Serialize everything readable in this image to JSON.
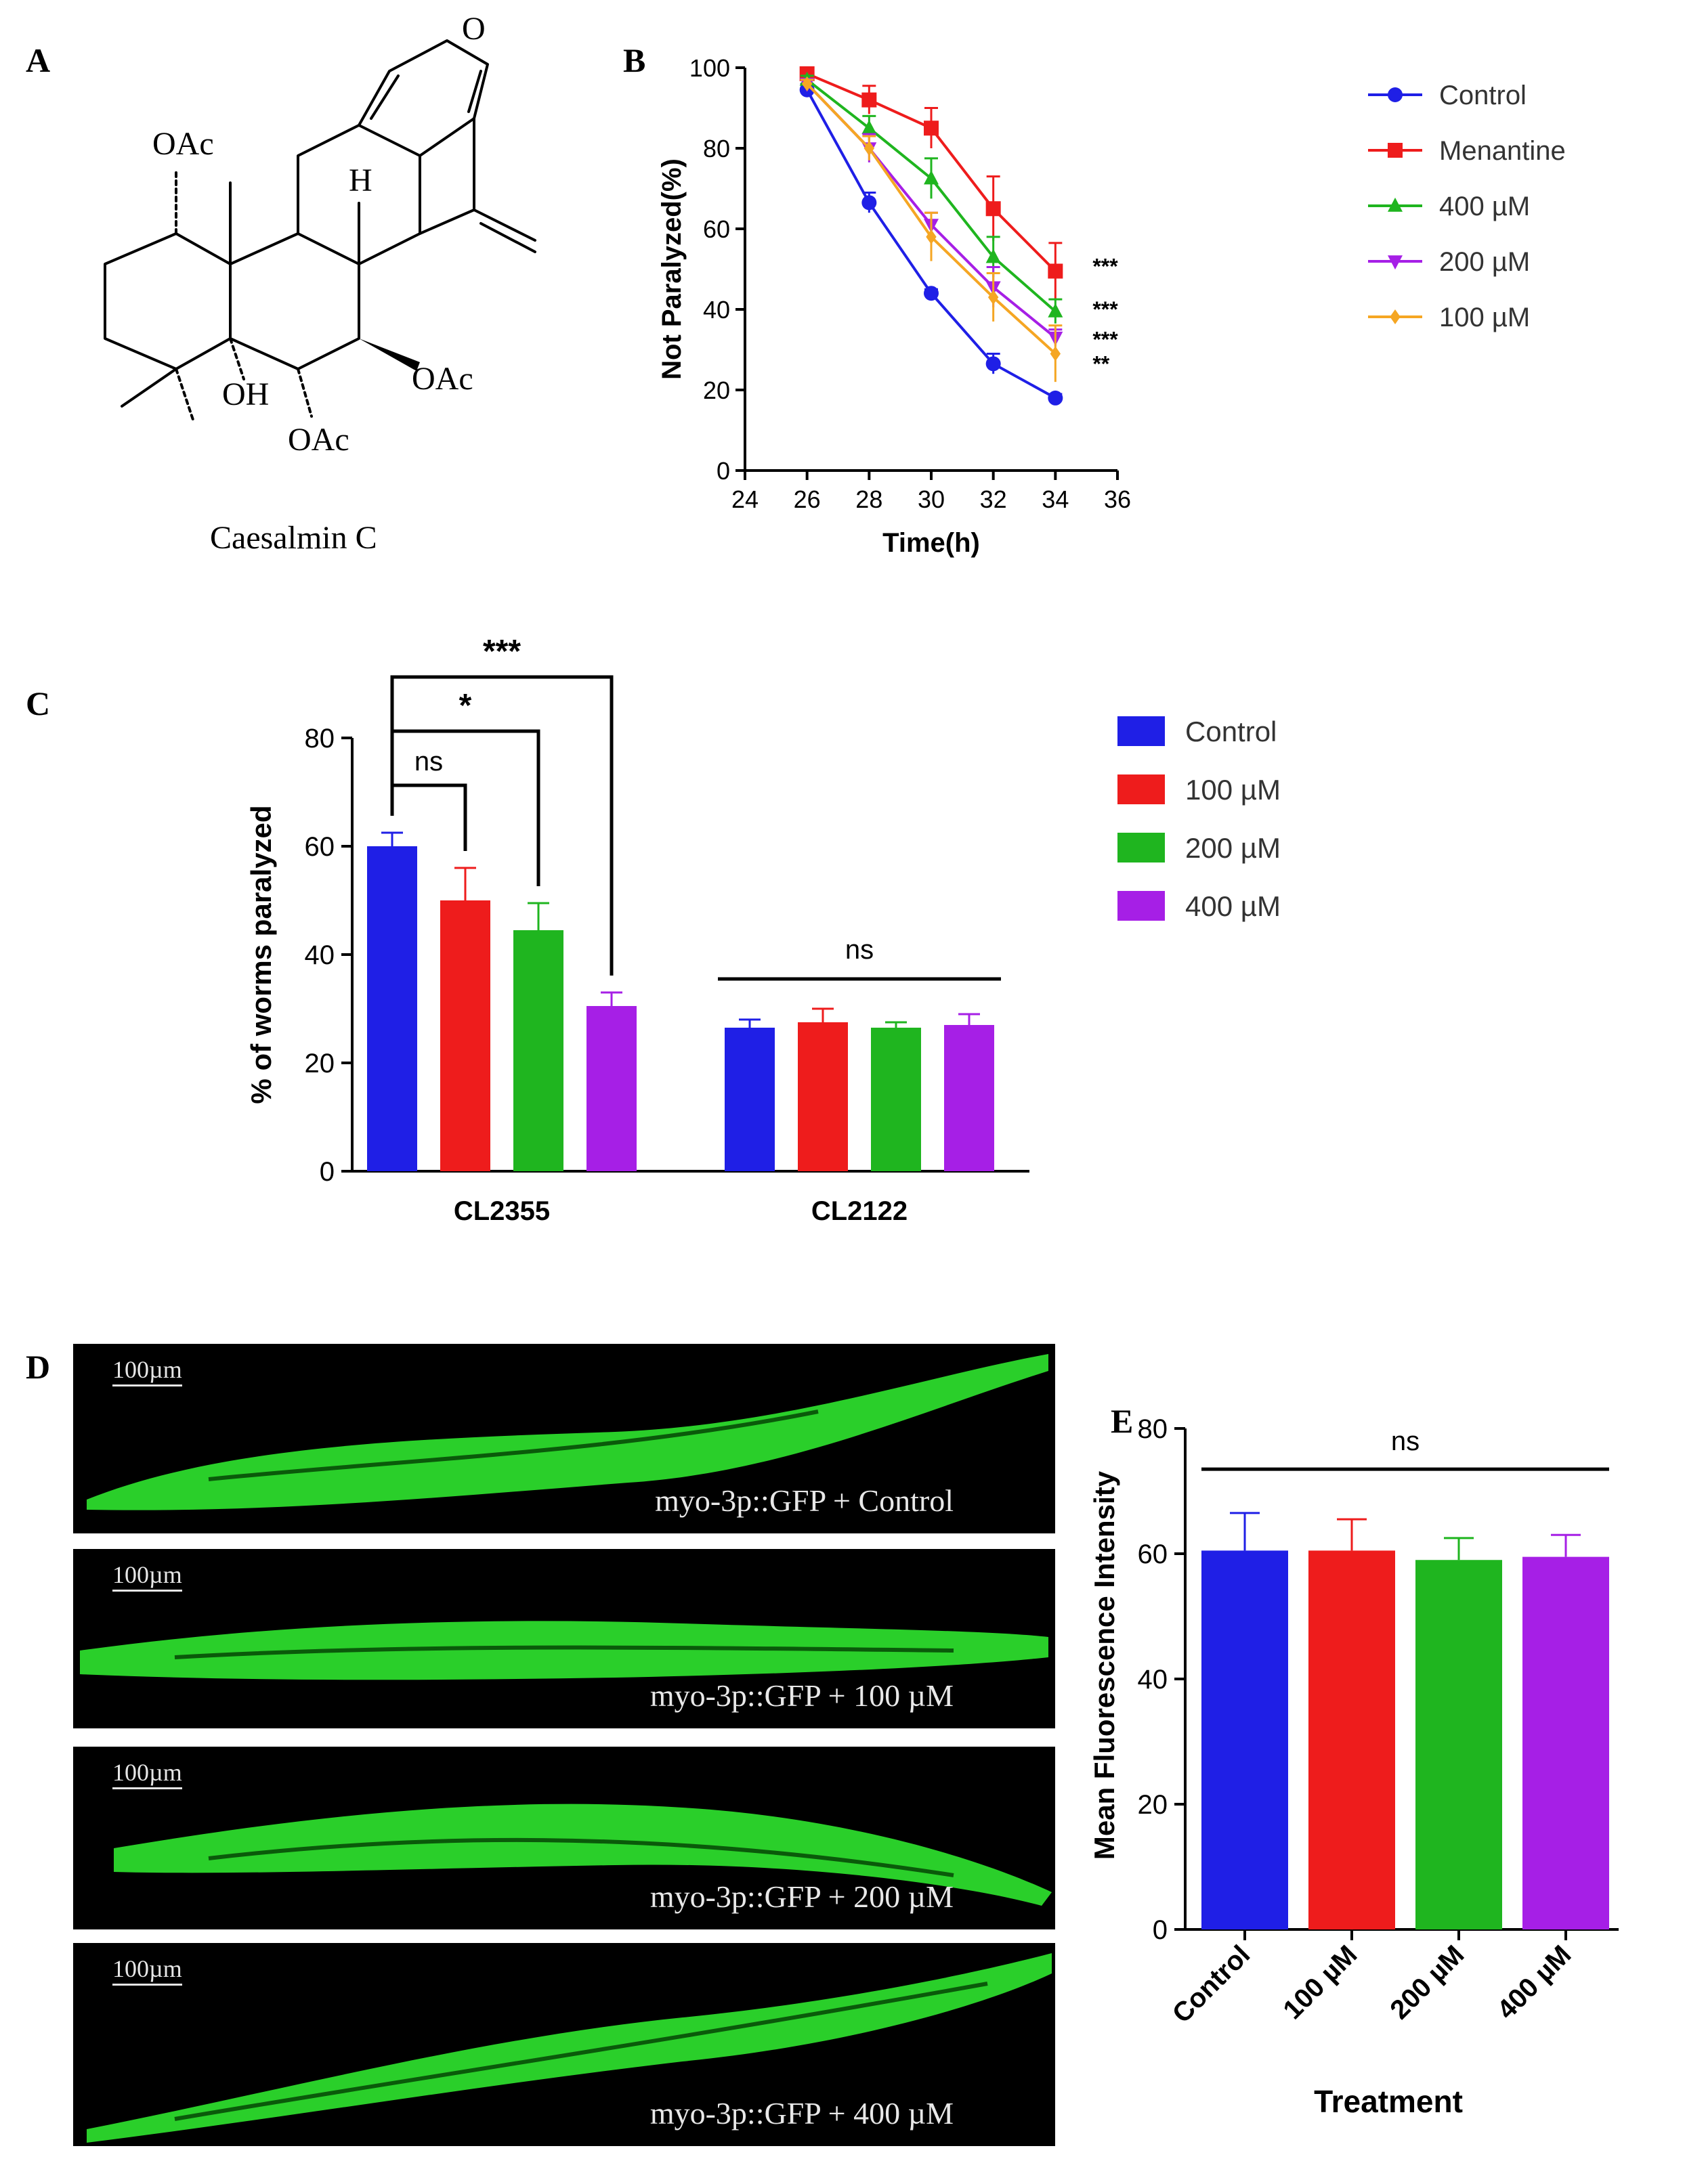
{
  "panels": {
    "A": {
      "letter": "A",
      "compound_name": "Caesalmin C",
      "atom_labels": [
        "O",
        "OAc",
        "H",
        "OH",
        "OAc",
        "OAc"
      ]
    },
    "B": {
      "letter": "B"
    },
    "C": {
      "letter": "C"
    },
    "D": {
      "letter": "D",
      "images": [
        {
          "scale": "100µm",
          "label": "myo-3p::GFP + Control"
        },
        {
          "scale": "100µm",
          "label": "myo-3p::GFP + 100 µM"
        },
        {
          "scale": "100µm",
          "label": "myo-3p::GFP + 200 µM"
        },
        {
          "scale": "100µm",
          "label": "myo-3p::GFP + 400 µM"
        }
      ]
    },
    "E": {
      "letter": "E"
    }
  },
  "colors": {
    "control": "#1f1fe6",
    "red": "#ee1c1c",
    "green": "#1fb51f",
    "purple": "#a61fe6",
    "orange": "#f5a623",
    "gfp": "#2fe52f"
  },
  "chart_data": [
    {
      "id": "B",
      "type": "line",
      "xlabel": "Time(h)",
      "ylabel": "Not Paralyzed(%)",
      "xlim": [
        24,
        36
      ],
      "ylim": [
        0,
        100
      ],
      "xticks": [
        24,
        26,
        28,
        30,
        32,
        34,
        36
      ],
      "yticks": [
        0,
        20,
        40,
        60,
        80,
        100
      ],
      "x": [
        26,
        28,
        30,
        32,
        34
      ],
      "legend_position": "right",
      "series": [
        {
          "name": "Control",
          "color": "#1f1fe6",
          "marker": "circle",
          "values": [
            94.5,
            66.5,
            44,
            26.5,
            18
          ],
          "errors": [
            1.5,
            2.5,
            1,
            2.5,
            1
          ]
        },
        {
          "name": "Menantine",
          "color": "#ee1c1c",
          "marker": "square",
          "values": [
            98.5,
            92,
            85,
            65,
            49.5
          ],
          "errors": [
            1.5,
            3.5,
            5,
            8,
            7
          ]
        },
        {
          "name": "400 µM",
          "color": "#1fb51f",
          "marker": "triangle-up",
          "values": [
            97,
            85,
            72.5,
            53,
            39.5
          ],
          "errors": [
            1,
            3,
            5,
            5,
            3
          ]
        },
        {
          "name": "200 µM",
          "color": "#a61fe6",
          "marker": "triangle-down",
          "values": [
            96,
            80,
            61,
            45.5,
            33
          ],
          "errors": [
            1,
            3.5,
            3,
            5,
            2
          ]
        },
        {
          "name": "100 µM",
          "color": "#f5a623",
          "marker": "diamond",
          "values": [
            96,
            80,
            58,
            43,
            29
          ],
          "errors": [
            1,
            3,
            6,
            6,
            7
          ]
        }
      ],
      "significance": [
        {
          "series": "Menantine",
          "label": "***"
        },
        {
          "series": "400 µM",
          "label": "***"
        },
        {
          "series": "200 µM",
          "label": "***"
        },
        {
          "series": "100 µM",
          "label": "**"
        }
      ]
    },
    {
      "id": "C",
      "type": "bar",
      "ylabel": "% of worms paralyzed",
      "ylim": [
        0,
        80
      ],
      "yticks": [
        0,
        20,
        40,
        60,
        80
      ],
      "categories": [
        "CL2355",
        "CL2122"
      ],
      "legend_position": "right",
      "series": [
        {
          "name": "Control",
          "color": "#1f1fe6",
          "values": [
            60,
            26.5
          ],
          "errors": [
            2.5,
            1.5
          ]
        },
        {
          "name": "100 µM",
          "color": "#ee1c1c",
          "values": [
            50,
            27.5
          ],
          "errors": [
            6,
            2.5
          ]
        },
        {
          "name": "200 µM",
          "color": "#1fb51f",
          "values": [
            44.5,
            26.5
          ],
          "errors": [
            5,
            1
          ]
        },
        {
          "name": "400 µM",
          "color": "#a61fe6",
          "values": [
            30.5,
            27
          ],
          "errors": [
            2.5,
            2
          ]
        }
      ],
      "comparisons": [
        {
          "group": "CL2355",
          "from": "Control",
          "to": "100 µM",
          "label": "ns"
        },
        {
          "group": "CL2355",
          "from": "Control",
          "to": "200 µM",
          "label": "*"
        },
        {
          "group": "CL2355",
          "from": "Control",
          "to": "400 µM",
          "label": "***"
        },
        {
          "group": "CL2122",
          "span": "all",
          "label": "ns"
        }
      ]
    },
    {
      "id": "E",
      "type": "bar",
      "xlabel": "Treatment",
      "ylabel": "Mean Fluorescence Intensity",
      "ylim": [
        0,
        80
      ],
      "yticks": [
        0,
        20,
        40,
        60,
        80
      ],
      "categories": [
        "Control",
        "100 µM",
        "200 µM",
        "400 µM"
      ],
      "colors": [
        "#1f1fe6",
        "#ee1c1c",
        "#1fb51f",
        "#a61fe6"
      ],
      "values": [
        60.5,
        60.5,
        59,
        59.5
      ],
      "errors": [
        6,
        5,
        3.5,
        3.5
      ],
      "comparisons": [
        {
          "span": "all",
          "label": "ns"
        }
      ]
    }
  ]
}
